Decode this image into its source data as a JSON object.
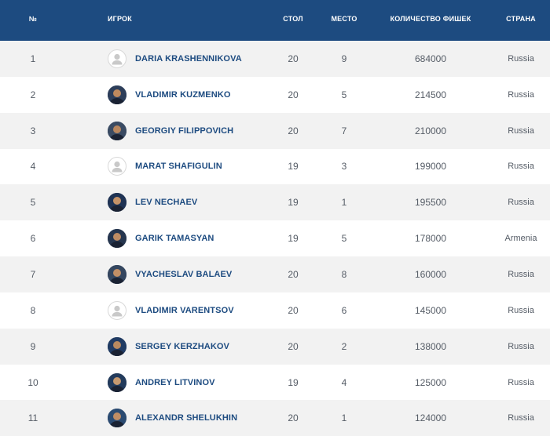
{
  "header": {
    "num": "№",
    "player": "ИГРОК",
    "table": "СТОЛ",
    "place": "МЕСТО",
    "chips": "КОЛИЧЕСТВО ФИШЕК",
    "country": "СТРАНА"
  },
  "rows": [
    {
      "num": "1",
      "name": "DARIA KRASHENNIKOVA",
      "avatar": "placeholder",
      "table": "20",
      "place": "9",
      "chips": "684000",
      "country": "Russia"
    },
    {
      "num": "2",
      "name": "VLADIMIR KUZMENKO",
      "avatar": "photo",
      "table": "20",
      "place": "5",
      "chips": "214500",
      "country": "Russia"
    },
    {
      "num": "3",
      "name": "GEORGIY FILIPPOVICH",
      "avatar": "photo",
      "table": "20",
      "place": "7",
      "chips": "210000",
      "country": "Russia"
    },
    {
      "num": "4",
      "name": "MARAT SHAFIGULIN",
      "avatar": "placeholder",
      "table": "19",
      "place": "3",
      "chips": "199000",
      "country": "Russia"
    },
    {
      "num": "5",
      "name": "LEV NECHAEV",
      "avatar": "photo",
      "table": "19",
      "place": "1",
      "chips": "195500",
      "country": "Russia"
    },
    {
      "num": "6",
      "name": "GARIK TAMASYAN",
      "avatar": "photo",
      "table": "19",
      "place": "5",
      "chips": "178000",
      "country": "Armenia"
    },
    {
      "num": "7",
      "name": "VYACHESLAV BALAEV",
      "avatar": "photo",
      "table": "20",
      "place": "8",
      "chips": "160000",
      "country": "Russia"
    },
    {
      "num": "8",
      "name": "VLADIMIR VARENTSOV",
      "avatar": "placeholder",
      "table": "20",
      "place": "6",
      "chips": "145000",
      "country": "Russia"
    },
    {
      "num": "9",
      "name": "SERGEY KERZHAKOV",
      "avatar": "photo",
      "table": "20",
      "place": "2",
      "chips": "138000",
      "country": "Russia"
    },
    {
      "num": "10",
      "name": "ANDREY LITVINOV",
      "avatar": "photo",
      "table": "19",
      "place": "4",
      "chips": "125000",
      "country": "Russia"
    },
    {
      "num": "11",
      "name": "ALEXANDR SHELUKHIN",
      "avatar": "photo",
      "table": "20",
      "place": "1",
      "chips": "124000",
      "country": "Russia"
    }
  ]
}
